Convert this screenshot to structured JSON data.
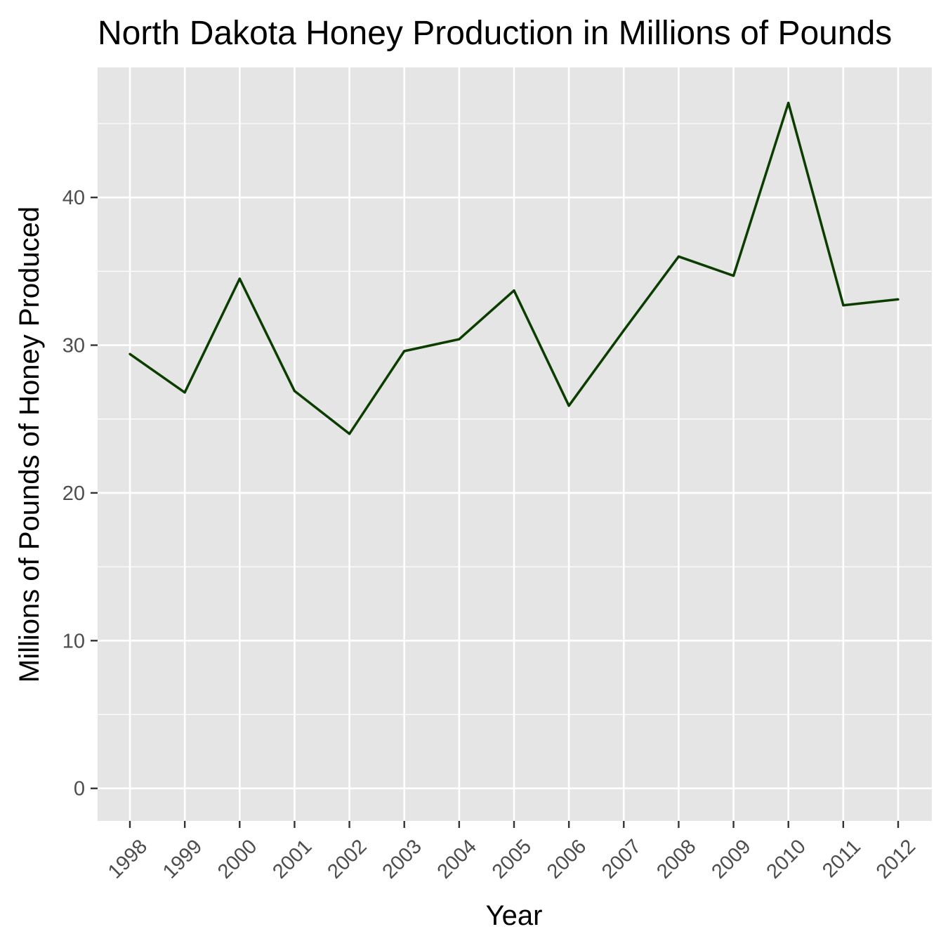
{
  "chart_data": {
    "type": "line",
    "title": "North Dakota Honey Production in Millions of Pounds",
    "xlabel": "Year",
    "ylabel": "Millions of Pounds of Honey Produced",
    "x": [
      "1998",
      "1999",
      "2000",
      "2001",
      "2002",
      "2003",
      "2004",
      "2005",
      "2006",
      "2007",
      "2008",
      "2009",
      "2010",
      "2011",
      "2012"
    ],
    "series": [
      {
        "values": [
          29.4,
          26.8,
          34.5,
          26.9,
          24.0,
          29.6,
          30.4,
          33.7,
          25.9,
          31.0,
          36.0,
          34.7,
          46.4,
          32.7,
          33.1
        ]
      }
    ],
    "ylim": [
      -2.2,
      48.8
    ],
    "yticks": [
      "0",
      "10",
      "20",
      "30",
      "40"
    ],
    "grid": true,
    "legend": "none",
    "colors": {
      "line": "#0b3d00",
      "panel_background": "#e5e5e5",
      "grid": "#ffffff",
      "tick_text": "#4d4d4d",
      "tick_mark": "#333333"
    }
  }
}
